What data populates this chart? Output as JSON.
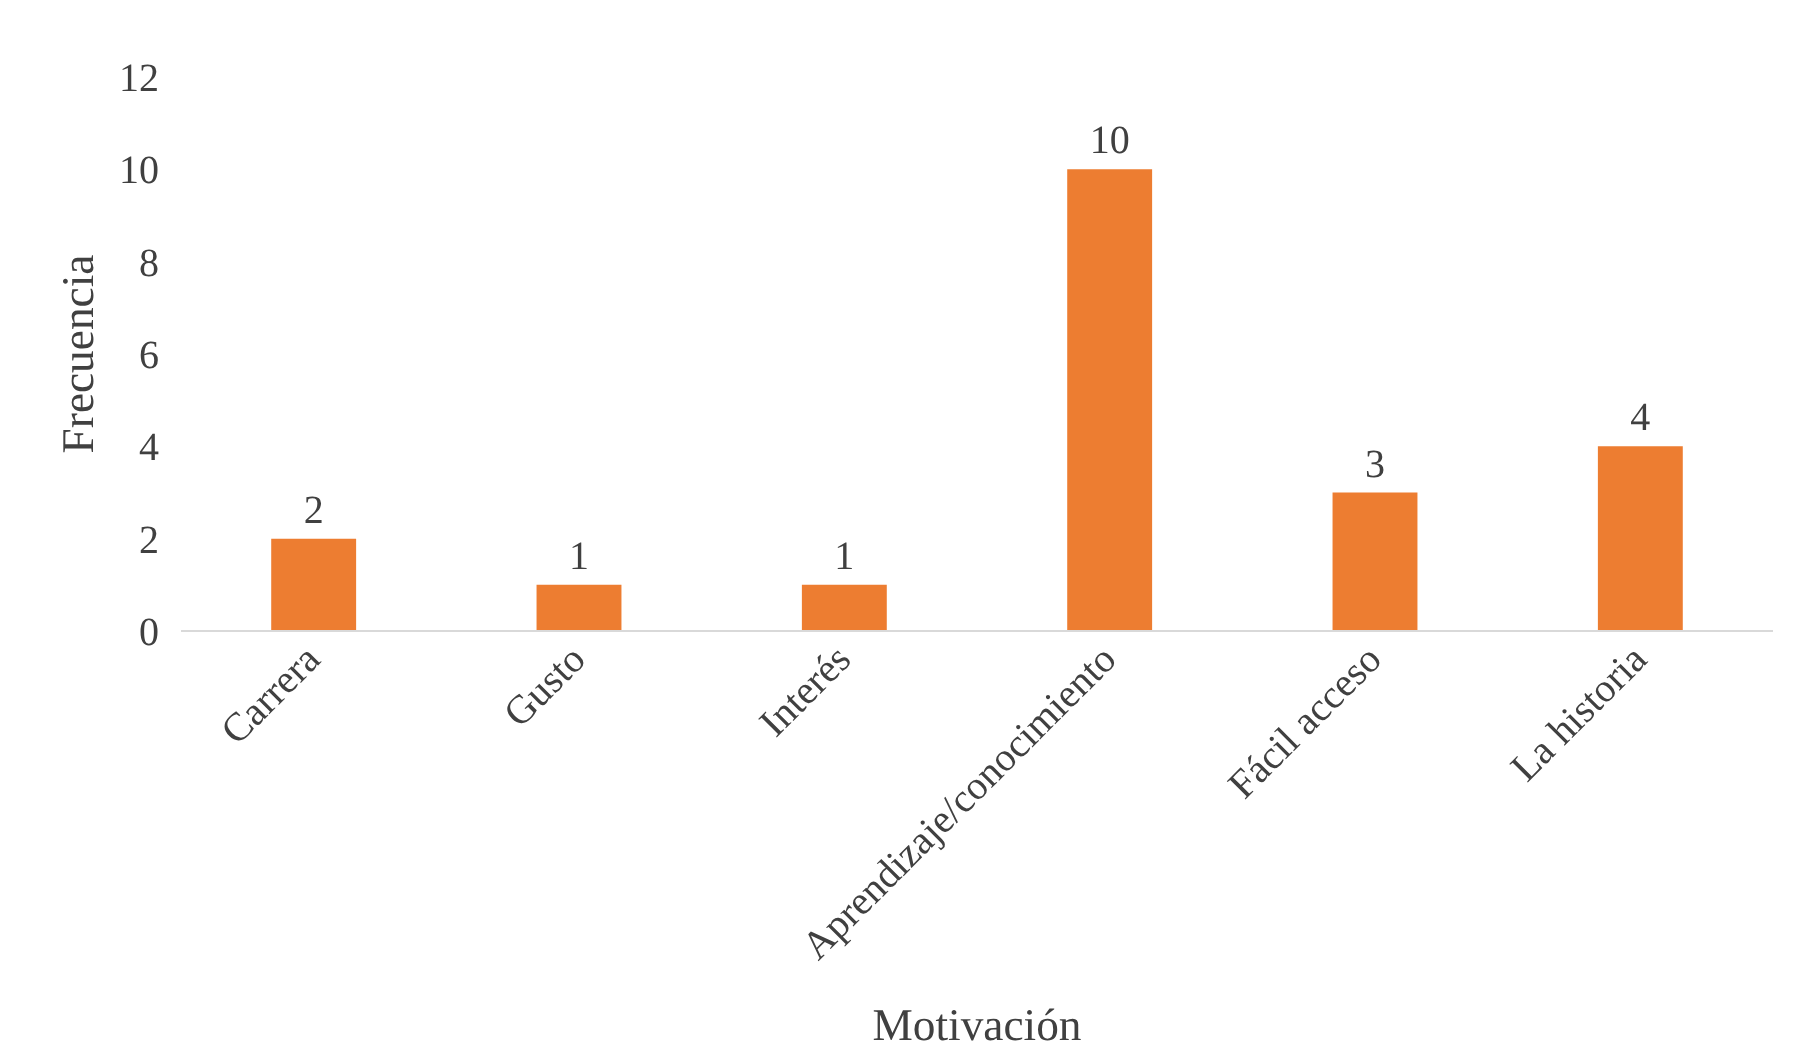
{
  "chart_data": {
    "type": "bar",
    "xlabel": "Motivación",
    "ylabel": "Frecuencia",
    "categories": [
      "Carrera",
      "Gusto",
      "Interés",
      "Aprendizaje/conocimiento",
      "Fácil acceso",
      "La historia"
    ],
    "values": [
      2,
      1,
      1,
      10,
      3,
      4
    ],
    "color": "#ed7d31",
    "ylim": [
      0,
      12
    ],
    "yticks": [
      0,
      2,
      4,
      6,
      8,
      10,
      12
    ],
    "grid": false,
    "data_labels": true
  }
}
